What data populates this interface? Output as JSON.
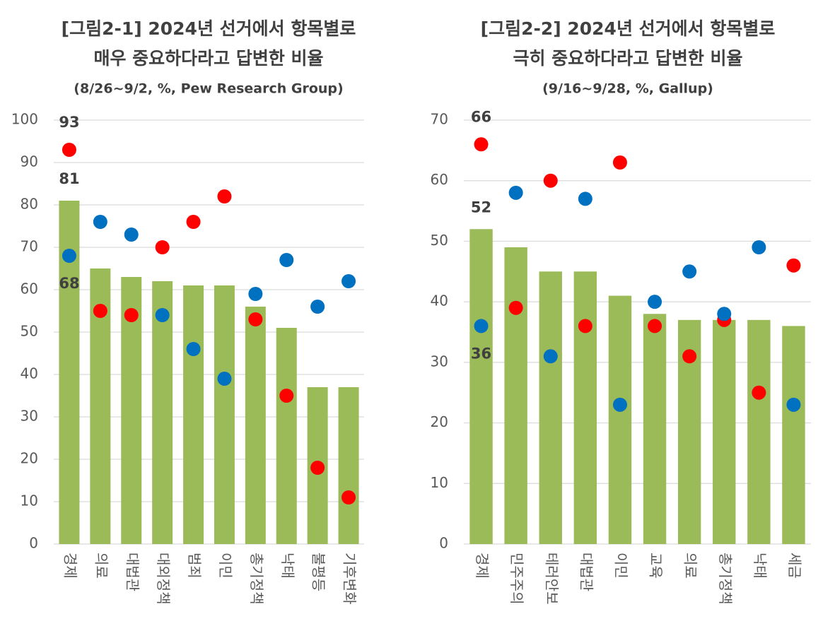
{
  "chart_data": [
    {
      "type": "bar_dot",
      "title": [
        "[그림2-1] 2024년 선거에서 항목별로",
        "매우 중요하다라고 답변한 비율"
      ],
      "subtitle": "(8/26~9/2, %, Pew Research Group)",
      "categories": [
        "경제",
        "의료",
        "대법관",
        "대외정책",
        "범죄",
        "이민",
        "총기정책",
        "낙태",
        "불평등",
        "기후변화"
      ],
      "series": [
        {
          "kind": "bar",
          "color": "#9bbb59",
          "values": [
            81,
            65,
            63,
            62,
            61,
            61,
            56,
            51,
            37,
            37
          ],
          "value_labels": [
            "81",
            null,
            null,
            null,
            null,
            null,
            null,
            null,
            null,
            null
          ]
        },
        {
          "kind": "dot",
          "color": "#ff0000",
          "values": [
            93,
            55,
            54,
            70,
            76,
            82,
            53,
            35,
            18,
            11
          ],
          "value_labels": [
            "93",
            null,
            null,
            null,
            null,
            null,
            null,
            null,
            null,
            null
          ]
        },
        {
          "kind": "dot",
          "color": "#0070c0",
          "values": [
            68,
            76,
            73,
            54,
            46,
            39,
            59,
            67,
            56,
            62
          ],
          "value_labels": [
            "68",
            null,
            null,
            null,
            null,
            null,
            null,
            null,
            null,
            null
          ]
        }
      ],
      "ylim": [
        0,
        100
      ],
      "yticks": [
        0,
        10,
        20,
        30,
        40,
        50,
        60,
        70,
        80,
        90,
        100
      ],
      "grid": true
    },
    {
      "type": "bar_dot",
      "title": [
        "[그림2-2] 2024년 선거에서 항목별로",
        "극히 중요하다라고 답변한 비율"
      ],
      "subtitle": "(9/16~9/28, %, Gallup)",
      "categories": [
        "경제",
        "민주주의",
        "테러안보",
        "대법관",
        "이민",
        "교육",
        "의료",
        "총기정책",
        "낙태",
        "세금"
      ],
      "series": [
        {
          "kind": "bar",
          "color": "#9bbb59",
          "values": [
            52,
            49,
            45,
            45,
            41,
            38,
            37,
            37,
            37,
            36
          ],
          "value_labels": [
            "52",
            null,
            null,
            null,
            null,
            null,
            null,
            null,
            null,
            null
          ]
        },
        {
          "kind": "dot",
          "color": "#ff0000",
          "values": [
            66,
            39,
            60,
            36,
            63,
            36,
            31,
            37,
            25,
            46
          ],
          "value_labels": [
            "66",
            null,
            null,
            null,
            null,
            null,
            null,
            null,
            null,
            null
          ]
        },
        {
          "kind": "dot",
          "color": "#0070c0",
          "values": [
            36,
            58,
            31,
            57,
            23,
            40,
            45,
            38,
            49,
            23
          ],
          "value_labels": [
            "36",
            null,
            null,
            null,
            null,
            null,
            null,
            null,
            null,
            null
          ]
        }
      ],
      "ylim": [
        0,
        70
      ],
      "yticks": [
        0,
        10,
        20,
        30,
        40,
        50,
        60,
        70
      ],
      "grid": true
    }
  ]
}
